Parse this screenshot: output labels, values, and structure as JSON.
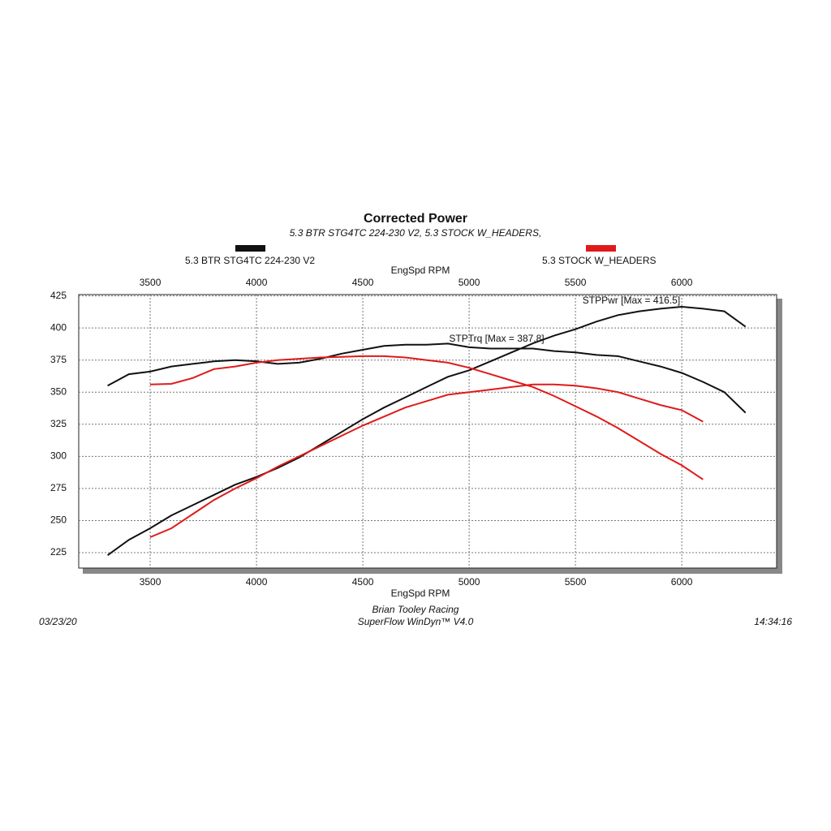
{
  "chart_data": {
    "type": "line",
    "title": "Corrected Power",
    "subtitle": "5.3 BTR STG4TC 224-230 V2, 5.3 STOCK W_HEADERS,",
    "x_label": "EngSpd RPM",
    "annotations": [
      "STPTrq [Max = 387.8]",
      "STPPwr [Max = 416.5]"
    ],
    "footer": {
      "shop": "Brian Tooley Racing",
      "software": "SuperFlow WinDyn™ V4.0",
      "date": "03/23/20",
      "time": "14:34:16"
    },
    "xlim": [
      3164,
      6446
    ],
    "xticks": [
      3500,
      4000,
      4500,
      5000,
      5500,
      6000
    ],
    "ylim": [
      213,
      426
    ],
    "yticks": [
      225,
      250,
      275,
      300,
      325,
      350,
      375,
      400,
      425
    ],
    "grid": true,
    "series": [
      {
        "name": "5.3 BTR STG4TC 224-230 V2",
        "color": "#111111",
        "x": [
          3300,
          3400,
          3500,
          3600,
          3700,
          3800,
          3900,
          4000,
          4100,
          4200,
          4300,
          4400,
          4500,
          4600,
          4700,
          4800,
          4900,
          5000,
          5100,
          5200,
          5300,
          5400,
          5500,
          5600,
          5700,
          5800,
          5900,
          6000,
          6100,
          6200,
          6300
        ],
        "torque": [
          355,
          364,
          366,
          370,
          372,
          374,
          375,
          374,
          372,
          373,
          376,
          380,
          383,
          386,
          387,
          387,
          387.8,
          385,
          384,
          384,
          384,
          382,
          381,
          379,
          378,
          374,
          370,
          365,
          358,
          350,
          334
        ],
        "power": [
          223,
          235,
          244,
          254,
          262,
          270,
          278,
          284,
          291,
          299,
          309,
          319,
          329,
          338,
          346,
          354,
          362,
          367,
          374,
          381,
          388,
          394,
          399,
          405,
          410,
          413,
          415,
          416.5,
          415,
          413,
          401
        ]
      },
      {
        "name": "5.3 STOCK W_HEADERS",
        "color": "#e01a1a",
        "x": [
          3500,
          3600,
          3700,
          3800,
          3900,
          4000,
          4100,
          4200,
          4300,
          4400,
          4500,
          4600,
          4700,
          4800,
          4900,
          5000,
          5100,
          5200,
          5300,
          5400,
          5500,
          5600,
          5700,
          5800,
          5900,
          6000,
          6100
        ],
        "torque": [
          356,
          356.5,
          361,
          368,
          370,
          373,
          375,
          376,
          377,
          377.5,
          378,
          378,
          377,
          375,
          373,
          369,
          364,
          359,
          354,
          347,
          339,
          331,
          322,
          312,
          302,
          293,
          282
        ],
        "power": [
          237,
          244,
          255,
          266,
          275,
          283,
          292,
          300,
          308,
          316,
          324,
          331,
          338,
          343,
          348,
          350,
          352,
          354,
          356,
          356,
          355,
          353,
          350,
          345,
          340,
          336,
          327
        ]
      }
    ]
  }
}
